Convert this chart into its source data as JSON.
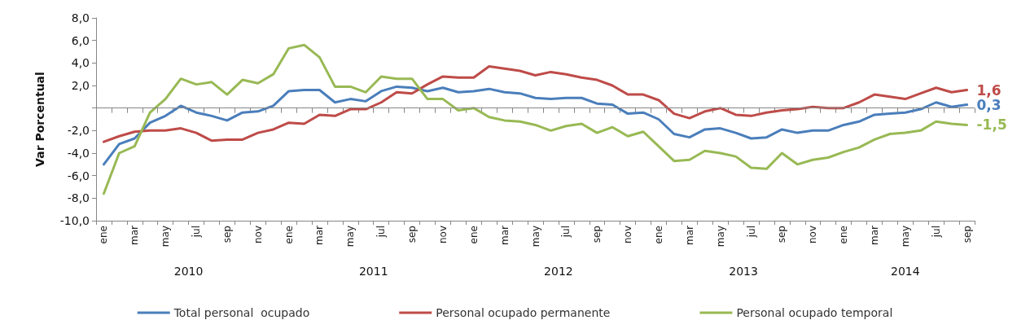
{
  "chart_data": {
    "type": "line",
    "ylabel": "Var Porcentual",
    "categories": [
      "ene",
      null,
      "mar",
      null,
      "may",
      null,
      "jul",
      null,
      "sep",
      null,
      "nov",
      null,
      "ene",
      null,
      "mar",
      null,
      "may",
      null,
      "jul",
      null,
      "sep",
      null,
      "nov",
      null,
      "ene",
      null,
      "mar",
      null,
      "may",
      null,
      "jul",
      null,
      "sep",
      null,
      "nov",
      null,
      "ene",
      null,
      "mar",
      null,
      "may",
      null,
      "jul",
      null,
      "sep",
      null,
      "nov",
      null,
      "ene",
      null,
      "mar",
      null,
      "may",
      null,
      "jul",
      null,
      "sep"
    ],
    "annotations": [
      "2010",
      "2011",
      "2012",
      "2013",
      "2014"
    ],
    "series": [
      {
        "name": "Total personal  ocupado",
        "color": "#4a7ebb",
        "values": [
          -5.0,
          -3.2,
          -2.7,
          -1.3,
          -0.7,
          0.2,
          -0.4,
          -0.7,
          -1.1,
          -0.4,
          -0.3,
          0.2,
          1.5,
          1.6,
          1.6,
          0.5,
          0.8,
          0.6,
          1.5,
          1.9,
          1.8,
          1.5,
          1.8,
          1.4,
          1.5,
          1.7,
          1.4,
          1.3,
          0.9,
          0.8,
          0.9,
          0.9,
          0.4,
          0.3,
          -0.5,
          -0.4,
          -1.0,
          -2.3,
          -2.6,
          -1.9,
          -1.8,
          -2.2,
          -2.7,
          -2.6,
          -1.9,
          -2.2,
          -2.0,
          -2.0,
          -1.5,
          -1.2,
          -0.6,
          -0.5,
          -0.4,
          -0.1,
          0.5,
          0.1,
          0.3
        ],
        "value_labels": [
          null,
          null,
          null,
          null,
          null,
          null,
          null,
          null,
          null,
          null,
          null,
          null,
          null,
          null,
          null,
          null,
          null,
          null,
          null,
          null,
          null,
          null,
          null,
          null,
          null,
          null,
          null,
          null,
          null,
          null,
          null,
          null,
          null,
          null,
          null,
          null,
          null,
          null,
          null,
          null,
          null,
          null,
          null,
          null,
          null,
          null,
          null,
          null,
          null,
          null,
          null,
          null,
          null,
          null,
          null,
          null,
          "0,3"
        ]
      },
      {
        "name": "Personal ocupado permanente",
        "color": "#be4b48",
        "values": [
          -3.0,
          -2.5,
          -2.1,
          -2.0,
          -2.0,
          -1.8,
          -2.2,
          -2.9,
          -2.8,
          -2.8,
          -2.2,
          -1.9,
          -1.3,
          -1.4,
          -0.6,
          -0.7,
          -0.1,
          -0.1,
          0.5,
          1.4,
          1.3,
          2.1,
          2.8,
          2.7,
          2.7,
          3.7,
          3.5,
          3.3,
          2.9,
          3.2,
          3.0,
          2.7,
          2.5,
          2.0,
          1.2,
          1.2,
          0.7,
          -0.5,
          -0.9,
          -0.3,
          0.0,
          -0.6,
          -0.7,
          -0.4,
          -0.2,
          -0.1,
          0.1,
          0.0,
          0.0,
          0.5,
          1.2,
          1.0,
          0.8,
          1.3,
          1.8,
          1.4,
          1.6
        ],
        "value_labels": [
          null,
          null,
          null,
          null,
          null,
          null,
          null,
          null,
          null,
          null,
          null,
          null,
          null,
          null,
          null,
          null,
          null,
          null,
          null,
          null,
          null,
          null,
          null,
          null,
          null,
          null,
          null,
          null,
          null,
          null,
          null,
          null,
          null,
          null,
          null,
          null,
          null,
          null,
          null,
          null,
          null,
          null,
          null,
          null,
          null,
          null,
          null,
          null,
          null,
          null,
          null,
          null,
          null,
          null,
          null,
          null,
          "1,6"
        ]
      },
      {
        "name": "Personal ocupado temporal",
        "color": "#98b954",
        "values": [
          -7.6,
          -4.0,
          -3.4,
          -0.4,
          0.8,
          2.6,
          2.1,
          2.3,
          1.2,
          2.5,
          2.2,
          3.0,
          5.3,
          5.6,
          4.5,
          1.9,
          1.9,
          1.4,
          2.8,
          2.6,
          2.6,
          0.8,
          0.8,
          -0.2,
          0.0,
          -0.8,
          -1.1,
          -1.2,
          -1.5,
          -2.0,
          -1.6,
          -1.4,
          -2.2,
          -1.7,
          -2.5,
          -2.1,
          -3.4,
          -4.7,
          -4.6,
          -3.8,
          -4.0,
          -4.3,
          -5.3,
          -5.4,
          -4.0,
          -5.0,
          -4.6,
          -4.4,
          -3.9,
          -3.5,
          -2.8,
          -2.3,
          -2.2,
          -2.0,
          -1.2,
          -1.4,
          -1.5
        ],
        "value_labels": [
          null,
          null,
          null,
          null,
          null,
          null,
          null,
          null,
          null,
          null,
          null,
          null,
          null,
          null,
          null,
          null,
          null,
          null,
          null,
          null,
          null,
          null,
          null,
          null,
          null,
          null,
          null,
          null,
          null,
          null,
          null,
          null,
          null,
          null,
          null,
          null,
          null,
          null,
          null,
          null,
          null,
          null,
          null,
          null,
          null,
          null,
          null,
          null,
          null,
          null,
          null,
          null,
          null,
          null,
          null,
          null,
          "-1,5"
        ]
      }
    ],
    "ylim": [
      -10,
      8
    ],
    "yticks": [
      {
        "value": -10,
        "label": "-10,0"
      },
      {
        "value": -8,
        "label": "-8,0"
      },
      {
        "value": -6,
        "label": "-6,0"
      },
      {
        "value": -4,
        "label": "-4,0"
      },
      {
        "value": -2,
        "label": "-2,0"
      },
      {
        "value": 0,
        "label": null
      },
      {
        "value": 2,
        "label": "2,0"
      },
      {
        "value": 4,
        "label": "4,0"
      },
      {
        "value": 6,
        "label": "6,0"
      },
      {
        "value": 8,
        "label": "8,0"
      }
    ],
    "ref_lines": [
      {
        "axis": "y",
        "value": 0,
        "color": "#868686"
      }
    ],
    "grid": false,
    "legend": "bottom",
    "marker": "none",
    "line_style": "solid"
  }
}
